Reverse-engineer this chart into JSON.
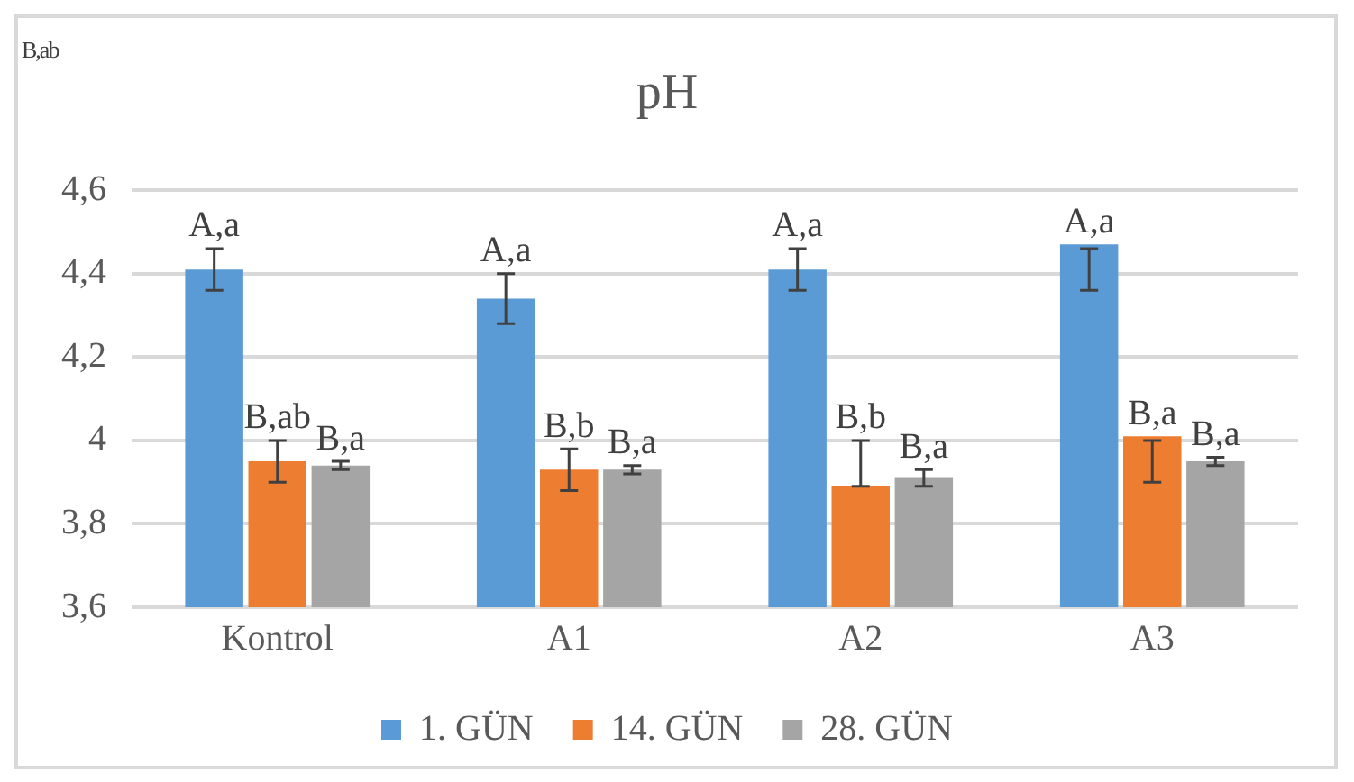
{
  "chart_data": {
    "type": "bar",
    "title": "pH",
    "categories": [
      "Kontrol",
      "A1",
      "A2",
      "A3"
    ],
    "series": [
      {
        "name": "1. GÜN",
        "color": "#5b9bd5",
        "values": [
          4.41,
          4.34,
          4.41,
          4.47
        ],
        "errors": [
          0.05,
          0.06,
          0.05,
          [
            4.36,
            4.46
          ]
        ],
        "value_labels": [
          "A,a",
          "A,a",
          "A,a",
          "A,a"
        ]
      },
      {
        "name": "14. GÜN",
        "color": "#ed7d31",
        "values": [
          3.95,
          3.93,
          3.89,
          4.01
        ],
        "errors": [
          0.05,
          0.05,
          [
            3.89,
            4.0
          ],
          [
            3.9,
            4.0
          ]
        ],
        "value_labels": [
          "B,ab",
          "B,b",
          "B,b",
          "B,a"
        ]
      },
      {
        "name": "28. GÜN",
        "color": "#a5a5a5",
        "values": [
          3.94,
          3.93,
          3.91,
          3.95
        ],
        "errors": [
          0.01,
          0.01,
          0.02,
          0.01
        ],
        "value_labels": [
          "B,a",
          "B,a",
          "B,a",
          "B,a"
        ]
      }
    ],
    "ylim": [
      3.6,
      4.6
    ],
    "yticks": [
      {
        "value": 3.6,
        "label": "3,6"
      },
      {
        "value": 3.8,
        "label": "3,8"
      },
      {
        "value": 4,
        "label": "4"
      },
      {
        "value": 4.2,
        "label": "4,2"
      },
      {
        "value": 4.4,
        "label": "4,4"
      },
      {
        "value": 4.6,
        "label": "4,6"
      }
    ],
    "grid": "y",
    "legend": "bottom",
    "annotations": [
      "B,ab"
    ]
  }
}
